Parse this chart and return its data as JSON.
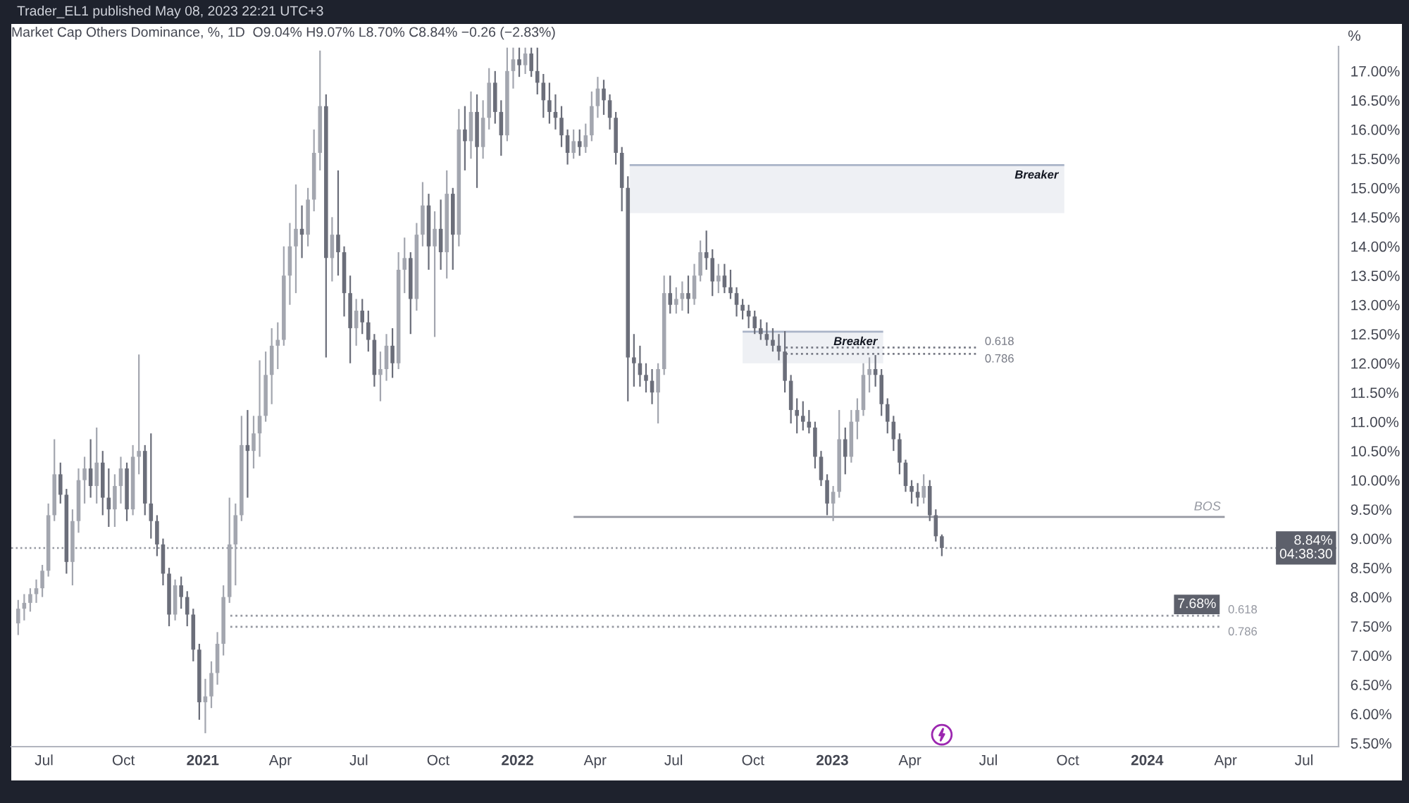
{
  "chart_data": {
    "type": "candlestick",
    "title": "Market Cap Others Dominance, %, 1D  O9.04% H9.07% L8.70% C8.84% −0.26 (−2.83%)",
    "ylabel": "%",
    "annotations": [
      "Trader_EL1 published May 08, 2023 22:21 UTC+3"
    ],
    "x": [
      "2020-06-01",
      "2020-06-08",
      "2020-06-15",
      "2020-06-22",
      "2020-06-29",
      "2020-07-06",
      "2020-07-13",
      "2020-07-20",
      "2020-07-27",
      "2020-08-03",
      "2020-08-10",
      "2020-08-17",
      "2020-08-24",
      "2020-08-31",
      "2020-09-07",
      "2020-09-14",
      "2020-09-21",
      "2020-09-28",
      "2020-10-05",
      "2020-10-12",
      "2020-10-19",
      "2020-10-26",
      "2020-11-02",
      "2020-11-09",
      "2020-11-16",
      "2020-11-23",
      "2020-11-30",
      "2020-12-07",
      "2020-12-14",
      "2020-12-21",
      "2020-12-28",
      "2021-01-04",
      "2021-01-11",
      "2021-01-18",
      "2021-01-25",
      "2021-02-01",
      "2021-02-08",
      "2021-02-15",
      "2021-02-22",
      "2021-03-01",
      "2021-03-08",
      "2021-03-15",
      "2021-03-22",
      "2021-03-29",
      "2021-04-05",
      "2021-04-12",
      "2021-04-19",
      "2021-04-26",
      "2021-05-03",
      "2021-05-10",
      "2021-05-17",
      "2021-05-24",
      "2021-05-31",
      "2021-06-07",
      "2021-06-14",
      "2021-06-21",
      "2021-06-28",
      "2021-07-05",
      "2021-07-12",
      "2021-07-19",
      "2021-07-26",
      "2021-08-02",
      "2021-08-09",
      "2021-08-16",
      "2021-08-23",
      "2021-08-30",
      "2021-09-06",
      "2021-09-13",
      "2021-09-20",
      "2021-09-27",
      "2021-10-04",
      "2021-10-11",
      "2021-10-18",
      "2021-10-25",
      "2021-11-01",
      "2021-11-08",
      "2021-11-15",
      "2021-11-22",
      "2021-11-29",
      "2021-12-06",
      "2021-12-13",
      "2021-12-20",
      "2021-12-27",
      "2022-01-03",
      "2022-01-10",
      "2022-01-17",
      "2022-01-24",
      "2022-01-31",
      "2022-02-07",
      "2022-02-14",
      "2022-02-21",
      "2022-02-28",
      "2022-03-07",
      "2022-03-14",
      "2022-03-21",
      "2022-03-28",
      "2022-04-04",
      "2022-04-11",
      "2022-04-18",
      "2022-04-25",
      "2022-05-02",
      "2022-05-09",
      "2022-05-16",
      "2022-05-23",
      "2022-05-30",
      "2022-06-06",
      "2022-06-13",
      "2022-06-20",
      "2022-06-27",
      "2022-07-04",
      "2022-07-11",
      "2022-07-18",
      "2022-07-25",
      "2022-08-01",
      "2022-08-08",
      "2022-08-15",
      "2022-08-22",
      "2022-08-29",
      "2022-09-05",
      "2022-09-12",
      "2022-09-19",
      "2022-09-26",
      "2022-10-03",
      "2022-10-10",
      "2022-10-17",
      "2022-10-24",
      "2022-10-31",
      "2022-11-07",
      "2022-11-14",
      "2022-11-21",
      "2022-11-28",
      "2022-12-05",
      "2022-12-12",
      "2022-12-19",
      "2022-12-26",
      "2023-01-02",
      "2023-01-09",
      "2023-01-16",
      "2023-01-23",
      "2023-01-30",
      "2023-02-06",
      "2023-02-13",
      "2023-02-20",
      "2023-02-27",
      "2023-03-06",
      "2023-03-13",
      "2023-03-20",
      "2023-03-27",
      "2023-04-03",
      "2023-04-10",
      "2023-04-17",
      "2023-04-24",
      "2023-05-01",
      "2023-05-08"
    ],
    "ohlc": [
      [
        7.55,
        7.95,
        7.35,
        7.8
      ],
      [
        7.8,
        8.05,
        7.6,
        7.9
      ],
      [
        7.9,
        8.15,
        7.75,
        8.05
      ],
      [
        8.05,
        8.3,
        7.9,
        8.15
      ],
      [
        8.15,
        8.55,
        8.0,
        8.45
      ],
      [
        8.45,
        9.6,
        8.35,
        9.4
      ],
      [
        9.4,
        10.7,
        9.3,
        10.1
      ],
      [
        10.1,
        10.3,
        9.6,
        9.75
      ],
      [
        9.75,
        9.85,
        8.4,
        8.6
      ],
      [
        8.6,
        9.5,
        8.2,
        9.3
      ],
      [
        9.3,
        10.2,
        9.1,
        10.0
      ],
      [
        10.0,
        10.4,
        9.6,
        10.2
      ],
      [
        10.2,
        10.7,
        9.7,
        9.9
      ],
      [
        9.9,
        10.9,
        9.6,
        10.3
      ],
      [
        10.3,
        10.5,
        9.4,
        9.7
      ],
      [
        9.7,
        10.2,
        9.2,
        9.5
      ],
      [
        9.5,
        10.1,
        9.2,
        9.9
      ],
      [
        9.9,
        10.4,
        9.6,
        10.2
      ],
      [
        10.2,
        10.3,
        9.3,
        9.5
      ],
      [
        9.5,
        10.6,
        9.4,
        10.4
      ],
      [
        10.4,
        12.15,
        10.1,
        10.5
      ],
      [
        10.5,
        10.6,
        9.4,
        9.6
      ],
      [
        9.6,
        10.8,
        9.0,
        9.3
      ],
      [
        9.3,
        9.4,
        8.7,
        8.9
      ],
      [
        8.9,
        9.0,
        8.2,
        8.4
      ],
      [
        8.4,
        8.5,
        7.5,
        7.7
      ],
      [
        7.7,
        8.3,
        7.6,
        8.2
      ],
      [
        8.2,
        8.35,
        7.8,
        8.0
      ],
      [
        8.0,
        8.1,
        7.5,
        7.7
      ],
      [
        7.7,
        7.8,
        6.9,
        7.1
      ],
      [
        7.1,
        7.2,
        5.9,
        6.2
      ],
      [
        6.2,
        6.6,
        5.67,
        6.3
      ],
      [
        6.3,
        6.9,
        6.1,
        6.7
      ],
      [
        6.7,
        7.4,
        6.5,
        7.2
      ],
      [
        7.2,
        8.2,
        7.0,
        8.0
      ],
      [
        8.0,
        9.7,
        7.9,
        8.9
      ],
      [
        8.9,
        9.6,
        8.2,
        9.4
      ],
      [
        9.4,
        11.1,
        9.3,
        10.6
      ],
      [
        10.6,
        11.2,
        9.7,
        10.5
      ],
      [
        10.5,
        11.1,
        10.2,
        10.8
      ],
      [
        10.8,
        12.05,
        10.4,
        11.1
      ],
      [
        11.1,
        12.2,
        11.0,
        11.8
      ],
      [
        11.8,
        12.6,
        11.3,
        12.3
      ],
      [
        12.3,
        12.7,
        11.9,
        12.4
      ],
      [
        12.4,
        14.0,
        12.3,
        13.5
      ],
      [
        13.5,
        14.4,
        13.0,
        14.0
      ],
      [
        14.0,
        15.06,
        13.2,
        14.3
      ],
      [
        14.3,
        14.7,
        13.8,
        14.2
      ],
      [
        14.2,
        15.0,
        14.0,
        14.8
      ],
      [
        14.8,
        16.0,
        14.6,
        15.6
      ],
      [
        15.6,
        17.35,
        15.3,
        16.4
      ],
      [
        16.4,
        16.6,
        12.1,
        13.8
      ],
      [
        13.8,
        14.5,
        13.4,
        14.2
      ],
      [
        14.2,
        15.3,
        13.5,
        13.9
      ],
      [
        13.9,
        14.0,
        12.8,
        13.2
      ],
      [
        13.2,
        13.5,
        12.0,
        12.6
      ],
      [
        12.6,
        13.1,
        12.3,
        12.9
      ],
      [
        12.9,
        13.1,
        12.5,
        12.7
      ],
      [
        12.7,
        12.9,
        12.2,
        12.4
      ],
      [
        12.4,
        12.5,
        11.6,
        11.8
      ],
      [
        11.8,
        12.2,
        11.35,
        11.9
      ],
      [
        11.9,
        12.5,
        11.7,
        12.3
      ],
      [
        12.3,
        12.6,
        11.75,
        12.0
      ],
      [
        12.0,
        13.9,
        11.9,
        13.6
      ],
      [
        13.6,
        14.15,
        13.2,
        13.8
      ],
      [
        13.8,
        13.9,
        12.5,
        13.1
      ],
      [
        13.1,
        14.4,
        12.9,
        14.2
      ],
      [
        14.2,
        15.1,
        14.0,
        14.7
      ],
      [
        14.7,
        14.9,
        13.6,
        14.0
      ],
      [
        14.0,
        14.6,
        12.45,
        14.3
      ],
      [
        14.3,
        14.8,
        13.6,
        13.9
      ],
      [
        13.9,
        15.3,
        13.45,
        14.9
      ],
      [
        14.9,
        15.0,
        13.6,
        14.2
      ],
      [
        14.2,
        16.35,
        14.0,
        16.0
      ],
      [
        16.0,
        16.4,
        15.3,
        15.8
      ],
      [
        15.8,
        16.65,
        15.5,
        16.3
      ],
      [
        16.3,
        16.6,
        15.0,
        15.7
      ],
      [
        15.7,
        16.5,
        15.5,
        16.2
      ],
      [
        16.2,
        17.05,
        16.0,
        16.8
      ],
      [
        16.8,
        17.0,
        16.1,
        16.3
      ],
      [
        16.3,
        16.5,
        15.55,
        15.9
      ],
      [
        15.9,
        17.4,
        15.8,
        17.0
      ],
      [
        17.0,
        17.4,
        16.7,
        17.2
      ],
      [
        17.2,
        17.4,
        16.9,
        17.1
      ],
      [
        17.1,
        17.4,
        16.95,
        17.3
      ],
      [
        17.3,
        17.4,
        16.9,
        17.0
      ],
      [
        17.0,
        17.4,
        16.6,
        16.8
      ],
      [
        16.8,
        16.95,
        16.2,
        16.5
      ],
      [
        16.5,
        16.8,
        16.1,
        16.3
      ],
      [
        16.3,
        16.6,
        16.0,
        16.2
      ],
      [
        16.2,
        16.4,
        15.7,
        15.9
      ],
      [
        15.9,
        16.0,
        15.4,
        15.6
      ],
      [
        15.6,
        16.0,
        15.5,
        15.8
      ],
      [
        15.8,
        16.0,
        15.55,
        15.7
      ],
      [
        15.7,
        16.1,
        15.6,
        15.9
      ],
      [
        15.9,
        16.65,
        15.8,
        16.4
      ],
      [
        16.4,
        16.9,
        16.2,
        16.7
      ],
      [
        16.7,
        16.85,
        16.25,
        16.5
      ],
      [
        16.5,
        16.6,
        16.0,
        16.2
      ],
      [
        16.2,
        16.3,
        15.4,
        15.6
      ],
      [
        15.6,
        15.7,
        14.6,
        15.0
      ],
      [
        15.0,
        15.2,
        11.35,
        12.1
      ],
      [
        12.1,
        12.5,
        11.6,
        12.0
      ],
      [
        12.0,
        12.3,
        11.6,
        11.8
      ],
      [
        11.8,
        12.0,
        11.5,
        11.7
      ],
      [
        11.7,
        11.9,
        11.3,
        11.5
      ],
      [
        11.5,
        12.0,
        10.97,
        11.9
      ],
      [
        11.9,
        13.5,
        11.8,
        13.2
      ],
      [
        13.2,
        13.5,
        12.85,
        13.0
      ],
      [
        13.0,
        13.3,
        12.85,
        13.1
      ],
      [
        13.1,
        13.4,
        12.9,
        13.2
      ],
      [
        13.2,
        13.5,
        12.85,
        13.1
      ],
      [
        13.1,
        13.7,
        13.0,
        13.5
      ],
      [
        13.5,
        14.1,
        13.4,
        13.9
      ],
      [
        13.9,
        14.27,
        13.6,
        13.8
      ],
      [
        13.8,
        13.95,
        13.15,
        13.4
      ],
      [
        13.4,
        13.7,
        13.2,
        13.5
      ],
      [
        13.5,
        13.7,
        13.2,
        13.3
      ],
      [
        13.3,
        13.6,
        13.1,
        13.2
      ],
      [
        13.2,
        13.3,
        12.8,
        13.0
      ],
      [
        13.0,
        13.1,
        12.75,
        12.9
      ],
      [
        12.9,
        13.0,
        12.6,
        12.8
      ],
      [
        12.8,
        12.9,
        12.5,
        12.6
      ],
      [
        12.6,
        12.75,
        12.4,
        12.5
      ],
      [
        12.5,
        12.7,
        12.3,
        12.4
      ],
      [
        12.4,
        12.6,
        12.2,
        12.3
      ],
      [
        12.3,
        12.5,
        12.05,
        12.2
      ],
      [
        12.2,
        12.55,
        11.5,
        11.7
      ],
      [
        11.7,
        11.8,
        10.97,
        11.2
      ],
      [
        11.2,
        11.4,
        10.8,
        11.1
      ],
      [
        11.1,
        11.35,
        10.85,
        11.0
      ],
      [
        11.0,
        11.2,
        10.8,
        10.9
      ],
      [
        10.9,
        11.0,
        10.2,
        10.4
      ],
      [
        10.4,
        10.5,
        9.9,
        10.0
      ],
      [
        10.0,
        10.1,
        9.4,
        9.6
      ],
      [
        9.6,
        9.9,
        9.3,
        9.8
      ],
      [
        9.8,
        11.2,
        9.7,
        10.7
      ],
      [
        10.7,
        10.9,
        10.1,
        10.4
      ],
      [
        10.4,
        11.2,
        10.3,
        11.0
      ],
      [
        11.0,
        11.4,
        10.7,
        11.2
      ],
      [
        11.2,
        12.0,
        11.1,
        11.8
      ],
      [
        11.8,
        12.1,
        11.5,
        11.9
      ],
      [
        11.9,
        12.14,
        11.6,
        11.8
      ],
      [
        11.8,
        11.9,
        11.1,
        11.3
      ],
      [
        11.3,
        11.4,
        10.8,
        11.0
      ],
      [
        11.0,
        11.1,
        10.5,
        10.7
      ],
      [
        10.7,
        10.8,
        10.1,
        10.3
      ],
      [
        10.3,
        10.35,
        9.8,
        9.9
      ],
      [
        9.9,
        10.0,
        9.6,
        9.8
      ],
      [
        9.8,
        9.95,
        9.55,
        9.7
      ],
      [
        9.7,
        10.1,
        9.6,
        9.9
      ],
      [
        9.9,
        10.0,
        9.3,
        9.4
      ],
      [
        9.4,
        9.5,
        8.95,
        9.04
      ],
      [
        9.04,
        9.07,
        8.7,
        8.84
      ]
    ],
    "colors": [
      "#a3a6af",
      "#a3a6af",
      "#a3a6af",
      "#a3a6af",
      "#a3a6af",
      "#a3a6af",
      "#a3a6af",
      "#6b6e7a",
      "#6b6e7a",
      "#a3a6af",
      "#a3a6af",
      "#a3a6af",
      "#6b6e7a",
      "#a3a6af",
      "#6b6e7a",
      "#6b6e7a",
      "#a3a6af",
      "#a3a6af",
      "#6b6e7a",
      "#a3a6af",
      "#a3a6af",
      "#6b6e7a",
      "#6b6e7a",
      "#6b6e7a",
      "#6b6e7a",
      "#6b6e7a",
      "#a3a6af",
      "#6b6e7a",
      "#6b6e7a",
      "#6b6e7a",
      "#6b6e7a",
      "#a3a6af",
      "#a3a6af",
      "#a3a6af",
      "#a3a6af",
      "#a3a6af",
      "#a3a6af",
      "#a3a6af",
      "#6b6e7a",
      "#a3a6af",
      "#a3a6af",
      "#a3a6af",
      "#a3a6af",
      "#a3a6af",
      "#a3a6af",
      "#a3a6af",
      "#a3a6af",
      "#6b6e7a",
      "#a3a6af",
      "#a3a6af",
      "#a3a6af",
      "#6b6e7a",
      "#a3a6af",
      "#6b6e7a",
      "#6b6e7a",
      "#6b6e7a",
      "#a3a6af",
      "#6b6e7a",
      "#6b6e7a",
      "#6b6e7a",
      "#a3a6af",
      "#a3a6af",
      "#6b6e7a",
      "#a3a6af",
      "#a3a6af",
      "#6b6e7a",
      "#a3a6af",
      "#a3a6af",
      "#6b6e7a",
      "#a3a6af",
      "#6b6e7a",
      "#a3a6af",
      "#6b6e7a",
      "#a3a6af",
      "#6b6e7a",
      "#a3a6af",
      "#6b6e7a",
      "#a3a6af",
      "#a3a6af",
      "#6b6e7a",
      "#6b6e7a",
      "#a3a6af",
      "#a3a6af",
      "#6b6e7a",
      "#a3a6af",
      "#6b6e7a",
      "#6b6e7a",
      "#6b6e7a",
      "#6b6e7a",
      "#6b6e7a",
      "#6b6e7a",
      "#6b6e7a",
      "#a3a6af",
      "#6b6e7a",
      "#a3a6af",
      "#a3a6af",
      "#a3a6af",
      "#6b6e7a",
      "#6b6e7a",
      "#6b6e7a",
      "#6b6e7a",
      "#6b6e7a",
      "#6b6e7a",
      "#6b6e7a",
      "#6b6e7a",
      "#6b6e7a",
      "#a3a6af",
      "#a3a6af",
      "#6b6e7a",
      "#a3a6af",
      "#a3a6af",
      "#6b6e7a",
      "#a3a6af",
      "#a3a6af",
      "#6b6e7a",
      "#6b6e7a",
      "#a3a6af",
      "#6b6e7a",
      "#6b6e7a",
      "#6b6e7a",
      "#6b6e7a",
      "#6b6e7a",
      "#6b6e7a",
      "#6b6e7a",
      "#6b6e7a",
      "#6b6e7a",
      "#6b6e7a",
      "#6b6e7a",
      "#6b6e7a",
      "#6b6e7a",
      "#6b6e7a",
      "#6b6e7a",
      "#6b6e7a",
      "#6b6e7a",
      "#6b6e7a",
      "#a3a6af",
      "#a3a6af",
      "#6b6e7a",
      "#a3a6af",
      "#a3a6af",
      "#a3a6af",
      "#a3a6af",
      "#6b6e7a",
      "#6b6e7a",
      "#6b6e7a",
      "#6b6e7a",
      "#6b6e7a",
      "#6b6e7a",
      "#6b6e7a",
      "#6b6e7a",
      "#a3a6af",
      "#6b6e7a",
      "#6b6e7a",
      "#6b6e7a"
    ],
    "series": [
      {
        "type": "line",
        "name": "Breaker",
        "x": [
          "2022-05-11",
          "2023-09-27"
        ],
        "values": [
          15.39,
          15.39
        ],
        "lower": [
          14.57,
          14.57
        ],
        "upper": [
          15.39,
          15.39
        ],
        "color": "#aab4c8"
      },
      {
        "type": "line",
        "name": "Breaker",
        "x": [
          "2022-09-19",
          "2023-03-01"
        ],
        "values": [
          12.54,
          12.54
        ],
        "lower": [
          12.0,
          12.0
        ],
        "upper": [
          12.54,
          12.54
        ],
        "color": "#aab4c8"
      },
      {
        "type": "line",
        "name": "0.618",
        "x": [
          "2022-11-08",
          "2023-06-20"
        ],
        "values": [
          12.27,
          12.27
        ],
        "color": "#787b86",
        "line_style": "dotted"
      },
      {
        "type": "line",
        "name": "0.786",
        "x": [
          "2022-11-08",
          "2023-06-20"
        ],
        "values": [
          12.16,
          12.16
        ],
        "color": "#787b86",
        "line_style": "dotted"
      },
      {
        "type": "line",
        "name": "BOS",
        "x": [
          "2022-03-07",
          "2024-03-31"
        ],
        "values": [
          9.37,
          9.37
        ],
        "color": "#9598a1",
        "line_style": "solid"
      },
      {
        "type": "line",
        "name": "0.618",
        "x": [
          "2021-02-02",
          "2024-03-28"
        ],
        "values": [
          7.68,
          7.68
        ],
        "color": "#9598a1",
        "line_style": "dotted",
        "value_labels": [
          null,
          "7.68%"
        ]
      },
      {
        "type": "line",
        "name": "0.786",
        "x": [
          "2021-02-02",
          "2024-03-28"
        ],
        "values": [
          7.49,
          7.49
        ],
        "color": "#9598a1",
        "line_style": "dotted"
      }
    ],
    "ref_lines": [
      {
        "axis": "y",
        "value": 8.84,
        "label": "8.84%\n04:38:30",
        "color": "#9598a1",
        "line_style": "dotted"
      }
    ],
    "xlim": [
      "2020-05-24",
      "2024-08-10"
    ],
    "xticks": [
      {
        "value": "2020-07-01",
        "label": "Jul"
      },
      {
        "value": "2020-10-01",
        "label": "Oct"
      },
      {
        "value": "2021-01-01",
        "label": "2021"
      },
      {
        "value": "2021-04-01",
        "label": "Apr"
      },
      {
        "value": "2021-07-01",
        "label": "Jul"
      },
      {
        "value": "2021-10-01",
        "label": "Oct"
      },
      {
        "value": "2022-01-01",
        "label": "2022"
      },
      {
        "value": "2022-04-01",
        "label": "Apr"
      },
      {
        "value": "2022-07-01",
        "label": "Jul"
      },
      {
        "value": "2022-10-01",
        "label": "Oct"
      },
      {
        "value": "2023-01-01",
        "label": "2023"
      },
      {
        "value": "2023-04-01",
        "label": "Apr"
      },
      {
        "value": "2023-07-01",
        "label": "Jul"
      },
      {
        "value": "2023-10-01",
        "label": "Oct"
      },
      {
        "value": "2024-01-01",
        "label": "2024"
      },
      {
        "value": "2024-04-01",
        "label": "Apr"
      },
      {
        "value": "2024-07-01",
        "label": "Jul"
      }
    ],
    "ylim": [
      5.44,
      17.42
    ],
    "yticks": [
      {
        "value": 5.5,
        "label": "5.50%"
      },
      {
        "value": 6.0,
        "label": "6.00%"
      },
      {
        "value": 6.5,
        "label": "6.50%"
      },
      {
        "value": 7.0,
        "label": "7.00%"
      },
      {
        "value": 7.5,
        "label": "7.50%"
      },
      {
        "value": 8.0,
        "label": "8.00%"
      },
      {
        "value": 8.5,
        "label": "8.50%"
      },
      {
        "value": 9.0,
        "label": "9.00%"
      },
      {
        "value": 9.5,
        "label": "9.50%"
      },
      {
        "value": 10.0,
        "label": "10.00%"
      },
      {
        "value": 10.5,
        "label": "10.50%"
      },
      {
        "value": 11.0,
        "label": "11.00%"
      },
      {
        "value": 11.5,
        "label": "11.50%"
      },
      {
        "value": 12.0,
        "label": "12.00%"
      },
      {
        "value": 12.5,
        "label": "12.50%"
      },
      {
        "value": 13.0,
        "label": "13.00%"
      },
      {
        "value": 13.5,
        "label": "13.50%"
      },
      {
        "value": 14.0,
        "label": "14.00%"
      },
      {
        "value": 14.5,
        "label": "14.50%"
      },
      {
        "value": 15.0,
        "label": "15.00%"
      },
      {
        "value": 15.5,
        "label": "15.50%"
      },
      {
        "value": 16.0,
        "label": "16.00%"
      },
      {
        "value": 16.5,
        "label": "16.50%"
      },
      {
        "value": 17.0,
        "label": "17.00%"
      }
    ]
  }
}
